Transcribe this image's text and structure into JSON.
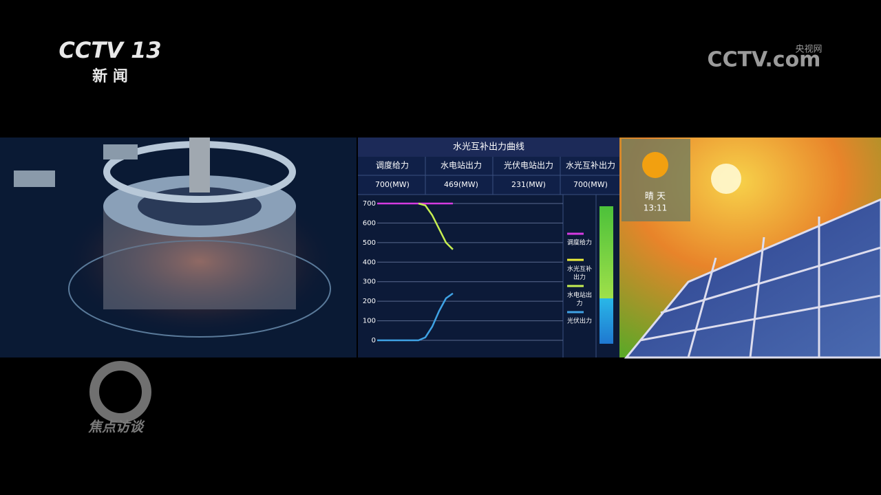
{
  "logos": {
    "channel": "CCTV 13",
    "channel_name": "新 闻",
    "site": "CCTV.com",
    "site_name": "央视网",
    "program": "焦点访谈"
  },
  "weather": {
    "condition": "晴 天",
    "time": "13:11"
  },
  "table": {
    "headers": [
      "调度给力",
      "水电站出力",
      "光伏电站出力",
      "水光互补出力"
    ],
    "values": [
      {
        "value": 700,
        "label": "700(MW)"
      },
      {
        "value": 469,
        "label": "469(MW)"
      },
      {
        "value": 231,
        "label": "231(MW)"
      },
      {
        "value": 700,
        "label": "700(MW)"
      }
    ]
  },
  "chart_data": {
    "type": "line",
    "title": "水光互补出力曲线",
    "categories": [
      null,
      null,
      null,
      null,
      null,
      null,
      null,
      null,
      null,
      null,
      null,
      null
    ],
    "series": [
      {
        "name": "调度给力",
        "color": "#d63be2",
        "values": [
          700,
          700,
          700,
          700,
          700,
          700,
          700,
          700,
          700,
          700,
          700,
          700
        ]
      },
      {
        "name": "水光互补出力",
        "color": "#eef03a",
        "values": [
          null,
          null,
          null,
          null,
          null,
          null,
          null,
          null,
          null,
          null,
          null,
          null
        ]
      },
      {
        "name": "水电站出力",
        "color": "#c6ee52",
        "values": [
          null,
          null,
          null,
          null,
          null,
          null,
          700,
          690,
          640,
          570,
          500,
          465
        ]
      },
      {
        "name": "光伏出力",
        "color": "#3fa2e4",
        "values": [
          0,
          0,
          0,
          0,
          0,
          0,
          0,
          15,
          70,
          150,
          215,
          240
        ]
      }
    ],
    "ylim": [
      0,
      700
    ],
    "yticks": [
      0,
      100,
      200,
      300,
      400,
      500,
      600,
      700
    ],
    "grid": true
  }
}
